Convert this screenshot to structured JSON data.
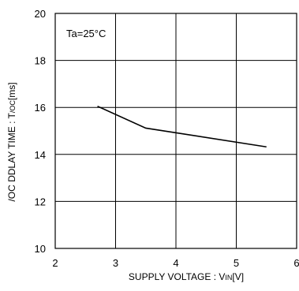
{
  "chart_data": {
    "type": "line",
    "annotation": "Ta=25°C",
    "xlabel": "SUPPLY VOLTAGE : V",
    "xlabel_sub": "IN",
    "xlabel_unit": "[V]",
    "ylabel": "/OC DDLAY TIME : T",
    "ylabel_sub": "/OC",
    "ylabel_unit": "[ms]",
    "xlim": [
      2,
      6
    ],
    "ylim": [
      10,
      20
    ],
    "xticks": [
      2,
      3,
      4,
      5,
      6
    ],
    "xtick_labels": [
      "2",
      "3",
      "4",
      "5",
      "6"
    ],
    "yticks": [
      10,
      12,
      14,
      16,
      18,
      20
    ],
    "ytick_labels": [
      "10",
      "12",
      "14",
      "16",
      "18",
      "20"
    ],
    "grid": true,
    "series": [
      {
        "x": [
          2.7,
          3.5,
          5.5
        ],
        "y": [
          16.05,
          15.12,
          14.32
        ]
      }
    ]
  },
  "colors": {
    "line": "#000000",
    "grid": "#000000",
    "background": "#ffffff"
  }
}
